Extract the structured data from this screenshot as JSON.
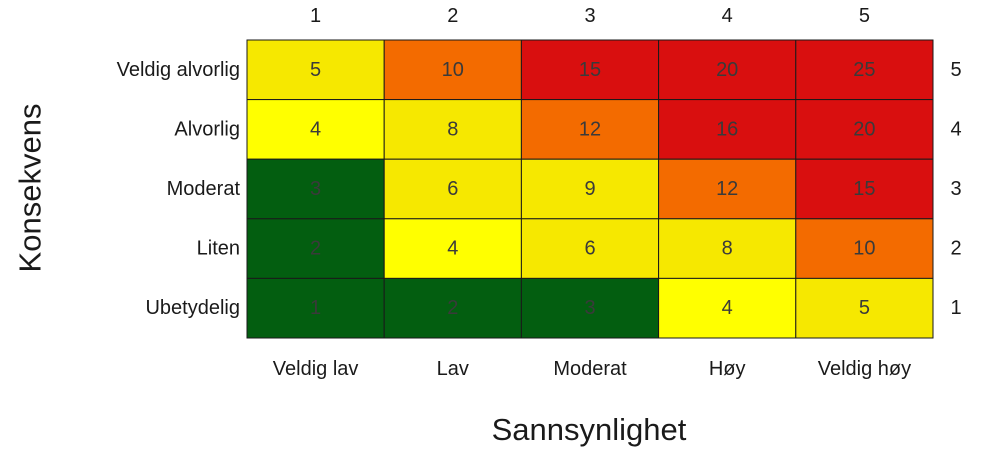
{
  "chart_data": {
    "type": "heatmap",
    "xlabel": "Sannsynlighet",
    "ylabel": "Konsekvens",
    "x_categories": [
      "Veldig lav",
      "Lav",
      "Moderat",
      "Høy",
      "Veldig høy"
    ],
    "x_numbers": [
      "1",
      "2",
      "3",
      "4",
      "5"
    ],
    "y_categories": [
      "Veldig alvorlig",
      "Alvorlig",
      "Moderat",
      "Liten",
      "Ubetydelig"
    ],
    "y_numbers": [
      "5",
      "4",
      "3",
      "2",
      "1"
    ],
    "cells": [
      [
        5,
        10,
        15,
        20,
        25
      ],
      [
        4,
        8,
        12,
        16,
        20
      ],
      [
        3,
        6,
        9,
        12,
        15
      ],
      [
        2,
        4,
        6,
        8,
        10
      ],
      [
        1,
        2,
        3,
        4,
        5
      ]
    ],
    "cell_colors": [
      [
        "#f6e800",
        "#f36b00",
        "#d90f0f",
        "#d90f0f",
        "#d90f0f"
      ],
      [
        "#ffff00",
        "#f6e800",
        "#f36b00",
        "#d90f0f",
        "#d90f0f"
      ],
      [
        "#035e10",
        "#f6e800",
        "#f6e800",
        "#f36b00",
        "#d90f0f"
      ],
      [
        "#035e10",
        "#ffff00",
        "#f6e800",
        "#f6e800",
        "#f36b00"
      ],
      [
        "#035e10",
        "#035e10",
        "#035e10",
        "#ffff00",
        "#f6e800"
      ]
    ],
    "grid": true
  }
}
